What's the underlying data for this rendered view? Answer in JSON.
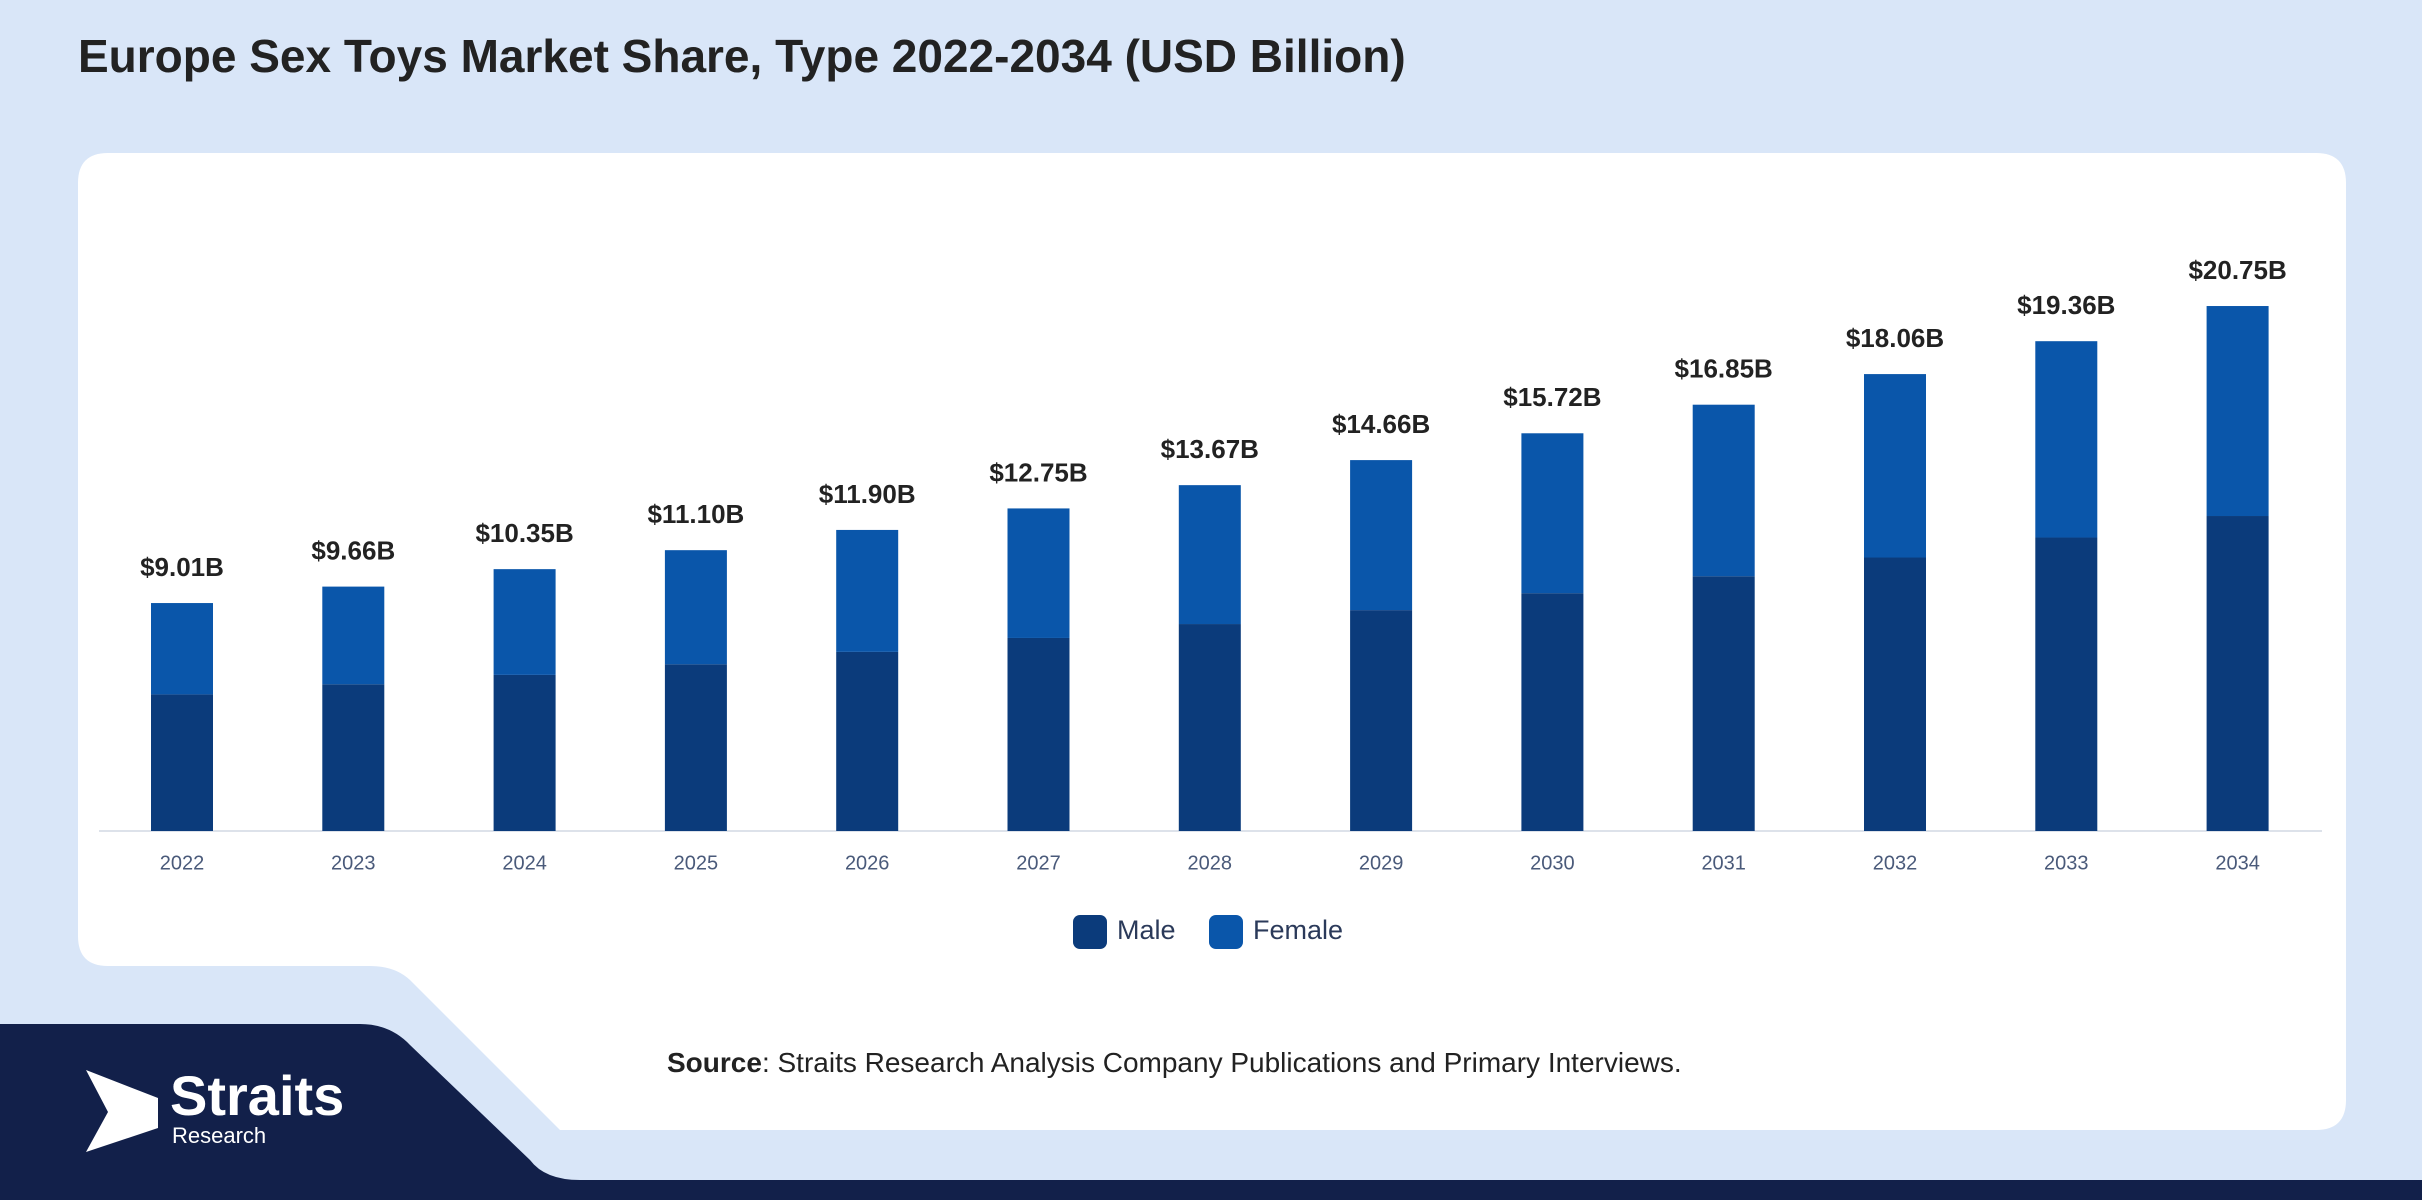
{
  "chart_data": {
    "type": "stacked-bar",
    "title": "Europe Sex Toys Market Share, Type 2022-2034 (USD Billion)",
    "categories": [
      "2022",
      "2023",
      "2024",
      "2025",
      "2026",
      "2027",
      "2028",
      "2029",
      "2030",
      "2031",
      "2032",
      "2033",
      "2034"
    ],
    "series": [
      {
        "name": "Male",
        "color": "#0b3b7b",
        "values": [
          5.4,
          5.8,
          6.17,
          6.59,
          7.08,
          7.63,
          8.18,
          8.73,
          9.4,
          10.07,
          10.81,
          11.6,
          12.45
        ]
      },
      {
        "name": "Female",
        "color": "#0a56aa",
        "values": [
          3.61,
          3.86,
          4.18,
          4.51,
          4.82,
          5.12,
          5.49,
          5.93,
          6.32,
          6.78,
          7.25,
          7.76,
          8.3
        ]
      }
    ],
    "totals": {
      "values": [
        9.01,
        9.66,
        10.35,
        11.1,
        11.9,
        12.75,
        13.67,
        14.66,
        15.72,
        16.85,
        18.06,
        19.36,
        20.75
      ],
      "value_labels": [
        "$9.01B",
        "$9.66B",
        "$10.35B",
        "$11.10B",
        "$11.90B",
        "$12.75B",
        "$13.67B",
        "$14.66B",
        "$15.72B",
        "$16.85B",
        "$18.06B",
        "$19.36B",
        "$20.75B"
      ]
    },
    "legend": "bottom"
  },
  "source": {
    "label": "Source",
    "text": ": Straits Research Analysis Company Publications and Primary Interviews."
  },
  "logo": {
    "name": "Straits",
    "sub": "Research"
  }
}
